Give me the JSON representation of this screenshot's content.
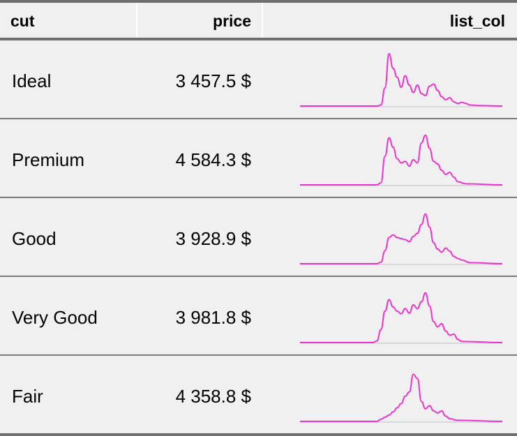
{
  "table": {
    "columns": [
      "cut",
      "price",
      "list_col"
    ],
    "rows": [
      {
        "cut": "Ideal",
        "price": "3 457.5 $"
      },
      {
        "cut": "Premium",
        "price": "4 584.3 $"
      },
      {
        "cut": "Good",
        "price": "3 928.9 $"
      },
      {
        "cut": "Very Good",
        "price": "3 981.8 $"
      },
      {
        "cut": "Fair",
        "price": "4 358.8 $"
      }
    ]
  },
  "colors": {
    "spark_line": "#ee33cc",
    "baseline": "#d9d9d9",
    "rule": "#6f6f6f",
    "background": "#f0f0f0"
  },
  "sparklines": [
    [
      [
        0,
        0
      ],
      [
        0.38,
        0
      ],
      [
        0.4,
        0.02
      ],
      [
        0.42,
        0.35
      ],
      [
        0.44,
        1.0
      ],
      [
        0.46,
        0.72
      ],
      [
        0.48,
        0.55
      ],
      [
        0.5,
        0.36
      ],
      [
        0.52,
        0.58
      ],
      [
        0.54,
        0.4
      ],
      [
        0.56,
        0.26
      ],
      [
        0.58,
        0.4
      ],
      [
        0.6,
        0.24
      ],
      [
        0.62,
        0.2
      ],
      [
        0.64,
        0.38
      ],
      [
        0.66,
        0.42
      ],
      [
        0.68,
        0.3
      ],
      [
        0.7,
        0.18
      ],
      [
        0.72,
        0.12
      ],
      [
        0.74,
        0.16
      ],
      [
        0.76,
        0.08
      ],
      [
        0.78,
        0.05
      ],
      [
        0.8,
        0.07
      ],
      [
        0.82,
        0.05
      ],
      [
        0.84,
        0.02
      ],
      [
        0.88,
        0.01
      ],
      [
        1.0,
        0
      ]
    ],
    [
      [
        0,
        0
      ],
      [
        0.38,
        0
      ],
      [
        0.4,
        0.04
      ],
      [
        0.42,
        0.55
      ],
      [
        0.44,
        0.9
      ],
      [
        0.46,
        0.72
      ],
      [
        0.48,
        0.5
      ],
      [
        0.5,
        0.42
      ],
      [
        0.52,
        0.45
      ],
      [
        0.54,
        0.36
      ],
      [
        0.56,
        0.48
      ],
      [
        0.58,
        0.42
      ],
      [
        0.6,
        0.8
      ],
      [
        0.62,
        0.95
      ],
      [
        0.64,
        0.7
      ],
      [
        0.66,
        0.45
      ],
      [
        0.68,
        0.4
      ],
      [
        0.7,
        0.28
      ],
      [
        0.72,
        0.2
      ],
      [
        0.74,
        0.24
      ],
      [
        0.76,
        0.15
      ],
      [
        0.78,
        0.06
      ],
      [
        0.82,
        0.02
      ],
      [
        1.0,
        0
      ]
    ],
    [
      [
        0,
        0
      ],
      [
        0.38,
        0
      ],
      [
        0.4,
        0.03
      ],
      [
        0.42,
        0.25
      ],
      [
        0.44,
        0.5
      ],
      [
        0.46,
        0.55
      ],
      [
        0.48,
        0.5
      ],
      [
        0.5,
        0.48
      ],
      [
        0.52,
        0.46
      ],
      [
        0.54,
        0.42
      ],
      [
        0.56,
        0.52
      ],
      [
        0.58,
        0.58
      ],
      [
        0.6,
        0.75
      ],
      [
        0.62,
        0.95
      ],
      [
        0.64,
        0.7
      ],
      [
        0.66,
        0.4
      ],
      [
        0.68,
        0.28
      ],
      [
        0.7,
        0.22
      ],
      [
        0.72,
        0.3
      ],
      [
        0.74,
        0.24
      ],
      [
        0.76,
        0.14
      ],
      [
        0.78,
        0.1
      ],
      [
        0.8,
        0.07
      ],
      [
        0.84,
        0.02
      ],
      [
        1.0,
        0
      ]
    ],
    [
      [
        0,
        0
      ],
      [
        0.36,
        0
      ],
      [
        0.38,
        0.03
      ],
      [
        0.4,
        0.25
      ],
      [
        0.42,
        0.6
      ],
      [
        0.44,
        0.82
      ],
      [
        0.46,
        0.68
      ],
      [
        0.48,
        0.6
      ],
      [
        0.5,
        0.55
      ],
      [
        0.52,
        0.65
      ],
      [
        0.54,
        0.56
      ],
      [
        0.56,
        0.72
      ],
      [
        0.58,
        0.65
      ],
      [
        0.6,
        0.78
      ],
      [
        0.62,
        0.95
      ],
      [
        0.64,
        0.7
      ],
      [
        0.66,
        0.4
      ],
      [
        0.68,
        0.3
      ],
      [
        0.7,
        0.36
      ],
      [
        0.72,
        0.22
      ],
      [
        0.74,
        0.14
      ],
      [
        0.76,
        0.16
      ],
      [
        0.78,
        0.06
      ],
      [
        0.8,
        0.02
      ],
      [
        1.0,
        0
      ]
    ],
    [
      [
        0,
        0
      ],
      [
        0.38,
        0
      ],
      [
        0.4,
        0.04
      ],
      [
        0.42,
        0.08
      ],
      [
        0.44,
        0.12
      ],
      [
        0.46,
        0.18
      ],
      [
        0.48,
        0.26
      ],
      [
        0.5,
        0.34
      ],
      [
        0.52,
        0.48
      ],
      [
        0.54,
        0.56
      ],
      [
        0.56,
        0.9
      ],
      [
        0.58,
        0.82
      ],
      [
        0.6,
        0.38
      ],
      [
        0.62,
        0.24
      ],
      [
        0.64,
        0.3
      ],
      [
        0.66,
        0.2
      ],
      [
        0.68,
        0.16
      ],
      [
        0.7,
        0.2
      ],
      [
        0.72,
        0.1
      ],
      [
        0.74,
        0.05
      ],
      [
        0.78,
        0.02
      ],
      [
        1.0,
        0
      ]
    ]
  ]
}
